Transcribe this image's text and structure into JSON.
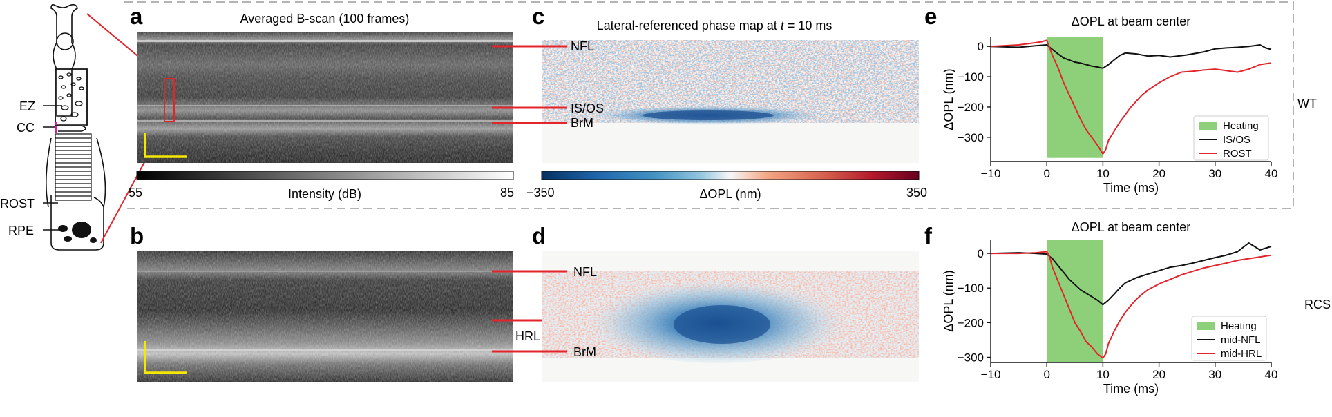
{
  "figure": {
    "cell_labels": {
      "ez": "EZ",
      "cc": "CC",
      "rost": "ROST",
      "rpe": "RPE"
    },
    "panel_letters": {
      "a": "a",
      "b": "b",
      "c": "c",
      "d": "d",
      "e": "e",
      "f": "f"
    },
    "panel_a": {
      "title": "Averaged B-scan (100 frames)"
    },
    "panel_c": {
      "title_prefix": "Lateral-referenced phase map at ",
      "title_var": "t",
      "title_suffix": " = 10 ms"
    },
    "layer_labels_wt": {
      "nfl": "NFL",
      "isos": "IS/OS",
      "brm": "BrM"
    },
    "layer_labels_rcs": {
      "nfl": "NFL",
      "hrl": "HRL",
      "brm": "BrM"
    },
    "intensity_colorbar": {
      "min": "55",
      "max": "85",
      "label": "Intensity (dB)"
    },
    "opl_colorbar": {
      "min": "−350",
      "max": "350",
      "label": "ΔOPL (nm)"
    },
    "row_labels": {
      "wt": "WT",
      "rcs": "RCS"
    },
    "colors": {
      "red": "#e3242b",
      "black": "#111111",
      "heating": "#8ed07a",
      "yellow": "#f5e800",
      "magenta": "#e0209a",
      "dash": "#b4b4b4"
    }
  },
  "chart_data": [
    {
      "id": "e",
      "type": "line",
      "title": "ΔOPL at beam center",
      "xlabel": "Time (ms)",
      "ylabel": "ΔOPL (nm)",
      "xlim": [
        -10,
        40
      ],
      "ylim": [
        -380,
        30
      ],
      "xticks": [
        -10,
        0,
        10,
        20,
        30,
        40
      ],
      "xtick_labels": [
        "−10",
        "0",
        "10",
        "20",
        "30",
        "40"
      ],
      "yticks": [
        0,
        -100,
        -200,
        -300
      ],
      "ytick_labels": [
        "0",
        "−100",
        "−200",
        "−300"
      ],
      "heating": {
        "x0": 0,
        "x1": 10,
        "y0": -368,
        "y1": 30
      },
      "legend": [
        "Heating",
        "IS/OS",
        "ROST"
      ],
      "series": [
        {
          "name": "IS/OS",
          "color": "#111111",
          "x": [
            -10,
            -5,
            -2,
            0,
            1,
            2,
            3,
            4,
            5,
            6,
            7,
            8,
            9,
            10,
            11,
            12,
            13,
            14,
            16,
            18,
            20,
            22,
            25,
            28,
            30,
            32,
            34,
            36,
            38,
            39,
            40
          ],
          "y": [
            0,
            -3,
            2,
            5,
            -10,
            -25,
            -38,
            -45,
            -52,
            -55,
            -60,
            -65,
            -68,
            -72,
            -60,
            -45,
            -30,
            -22,
            -25,
            -32,
            -30,
            -35,
            -28,
            -18,
            -8,
            -5,
            -3,
            0,
            5,
            -5,
            -10
          ]
        },
        {
          "name": "ROST",
          "color": "#e3242b",
          "x": [
            -10,
            -5,
            -2,
            -1,
            0,
            0.5,
            1,
            2,
            3,
            4,
            5,
            6,
            7,
            8,
            9,
            10,
            10.5,
            11,
            12,
            13,
            14,
            15,
            16,
            17,
            18,
            20,
            22,
            24,
            26,
            28,
            30,
            32,
            34,
            36,
            38,
            40
          ],
          "y": [
            0,
            5,
            12,
            15,
            20,
            -5,
            -30,
            -70,
            -120,
            -160,
            -200,
            -240,
            -275,
            -300,
            -325,
            -355,
            -340,
            -310,
            -280,
            -250,
            -225,
            -200,
            -180,
            -160,
            -145,
            -120,
            -100,
            -85,
            -82,
            -78,
            -75,
            -80,
            -85,
            -75,
            -60,
            -55
          ]
        }
      ]
    },
    {
      "id": "f",
      "type": "line",
      "title": "ΔOPL at beam center",
      "xlabel": "Time (ms)",
      "ylabel": "ΔOPL (nm)",
      "xlim": [
        -10,
        40
      ],
      "ylim": [
        -315,
        40
      ],
      "xticks": [
        -10,
        0,
        10,
        20,
        30,
        40
      ],
      "xtick_labels": [
        "−10",
        "0",
        "10",
        "20",
        "30",
        "40"
      ],
      "yticks": [
        0,
        -100,
        -200,
        -300
      ],
      "ytick_labels": [
        "0",
        "−100",
        "−200",
        "−300"
      ],
      "heating": {
        "x0": 0,
        "x1": 10,
        "y0": -313,
        "y1": 40
      },
      "legend": [
        "Heating",
        "mid-NFL",
        "mid-HRL"
      ],
      "series": [
        {
          "name": "mid-NFL",
          "color": "#111111",
          "x": [
            -10,
            -5,
            -2,
            0,
            1,
            2,
            3,
            4,
            5,
            6,
            7,
            8,
            9,
            10,
            11,
            12,
            13,
            14,
            16,
            18,
            20,
            22,
            24,
            26,
            28,
            30,
            32,
            34,
            36,
            38,
            40
          ],
          "y": [
            0,
            2,
            0,
            -2,
            -15,
            -35,
            -55,
            -75,
            -90,
            -105,
            -115,
            -125,
            -135,
            -148,
            -135,
            -118,
            -100,
            -85,
            -70,
            -60,
            -50,
            -40,
            -35,
            -28,
            -20,
            -12,
            -5,
            5,
            30,
            10,
            20
          ]
        },
        {
          "name": "mid-HRL",
          "color": "#e3242b",
          "x": [
            -10,
            -5,
            -2,
            0,
            0.5,
            1,
            2,
            3,
            4,
            5,
            6,
            7,
            8,
            9,
            10,
            10.5,
            11,
            12,
            13,
            14,
            15,
            16,
            17,
            18,
            20,
            22,
            24,
            26,
            28,
            30,
            32,
            34,
            36,
            38,
            40
          ],
          "y": [
            0,
            0,
            2,
            5,
            -10,
            -40,
            -80,
            -120,
            -160,
            -200,
            -225,
            -255,
            -270,
            -290,
            -302,
            -290,
            -260,
            -225,
            -195,
            -170,
            -150,
            -132,
            -118,
            -105,
            -88,
            -75,
            -62,
            -52,
            -42,
            -35,
            -28,
            -20,
            -15,
            -10,
            -5
          ]
        }
      ]
    }
  ]
}
